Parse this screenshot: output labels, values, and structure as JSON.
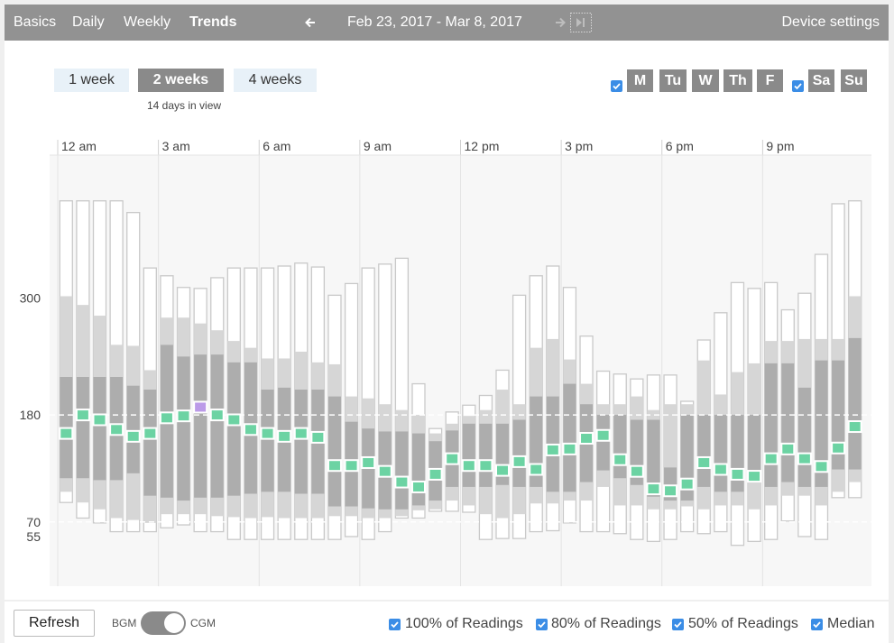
{
  "nav": {
    "tabs": [
      "Basics",
      "Daily",
      "Weekly",
      "Trends"
    ],
    "active_tab": 3,
    "date_range": "Feb 23, 2017 - Mar 8, 2017",
    "device_settings": "Device settings"
  },
  "controls": {
    "range_buttons": [
      "1 week",
      "2 weeks",
      "4 weeks"
    ],
    "active_range": 1,
    "days_in_view": "14 days in view"
  },
  "days": {
    "labels": [
      "M",
      "Tu",
      "W",
      "Th",
      "F",
      "Sa",
      "Su"
    ]
  },
  "footer": {
    "refresh": "Refresh",
    "toggle_left": "BGM",
    "toggle_right": "CGM"
  },
  "chart_data": {
    "type": "box",
    "x": [
      15,
      45,
      75,
      105,
      135,
      165,
      195,
      225,
      255,
      285,
      315,
      345,
      375,
      405,
      435,
      465,
      495,
      525,
      555,
      585,
      615,
      645,
      675,
      705,
      735,
      765,
      795,
      825,
      855,
      885,
      915,
      945,
      975,
      1005,
      1035,
      1065,
      1095,
      1125,
      1155,
      1185,
      1215,
      1245,
      1275,
      1305,
      1335,
      1365,
      1395,
      1425
    ],
    "xlim": [
      0,
      1440
    ],
    "xticks": [
      {
        "value": 0,
        "label": "12 am"
      },
      {
        "value": 180,
        "label": "3 am"
      },
      {
        "value": 360,
        "label": "6 am"
      },
      {
        "value": 540,
        "label": "9 am"
      },
      {
        "value": 720,
        "label": "12 pm"
      },
      {
        "value": 900,
        "label": "3 pm"
      },
      {
        "value": 1080,
        "label": "6 pm"
      },
      {
        "value": 1260,
        "label": "9 pm"
      }
    ],
    "ylim": [
      4,
      447
    ],
    "yticks": [
      55,
      70,
      180,
      300
    ],
    "target_range": [
      70,
      180
    ],
    "ranges": [
      {
        "name": "100% of Readings",
        "color": "#ffffff",
        "stroke": "#c9c9c9",
        "low": [
          90,
          74,
          69,
          60,
          60,
          60,
          64,
          67,
          60,
          60,
          52,
          52,
          52,
          52,
          52,
          52,
          52,
          55,
          52,
          60,
          74,
          74,
          81,
          81,
          80,
          52,
          53,
          53,
          60,
          61,
          69,
          60,
          60,
          58,
          52,
          50,
          52,
          60,
          58,
          60,
          46,
          50,
          52,
          71,
          55,
          52,
          95,
          95
        ],
        "high": [
          400,
          400,
          400,
          400,
          388,
          331,
          323,
          311,
          310,
          321,
          331,
          331,
          331,
          333,
          336,
          332,
          303,
          315,
          331,
          335,
          341,
          212,
          166,
          183,
          190,
          200,
          226,
          303,
          323,
          333,
          311,
          261,
          225,
          222,
          217,
          221,
          221,
          194,
          257,
          285,
          316,
          310,
          316,
          288,
          305,
          345,
          397,
          400
        ]
      },
      {
        "name": "80% of Readings",
        "color": "#d6d6d6",
        "low": [
          101,
          90,
          83,
          74,
          72,
          69,
          78,
          78,
          78,
          76,
          75,
          74,
          75,
          74,
          74,
          74,
          76,
          76,
          74,
          74,
          76,
          82,
          83,
          92,
          87,
          78,
          74,
          78,
          89,
          89,
          92,
          92,
          106,
          87,
          87,
          83,
          83,
          86,
          83,
          87,
          87,
          83,
          87,
          97,
          97,
          87,
          101,
          111
        ],
        "high": [
          302,
          293,
          282,
          252,
          251,
          226,
          280,
          280,
          274,
          267,
          256,
          249,
          238,
          238,
          245,
          234,
          232,
          199,
          197,
          191,
          185,
          180,
          161,
          171,
          179,
          185,
          206,
          191,
          249,
          258,
          237,
          212,
          191,
          191,
          199,
          185,
          191,
          191,
          236,
          201,
          224,
          233,
          256,
          256,
          258,
          258,
          258,
          302
        ]
      },
      {
        "name": "50% of Readings",
        "color": "#adadad",
        "low": [
          115,
          115,
          113,
          113,
          120,
          97,
          95,
          92,
          95,
          95,
          97,
          99,
          101,
          101,
          99,
          99,
          86,
          86,
          84,
          83,
          83,
          87,
          92,
          106,
          106,
          106,
          108,
          106,
          106,
          101,
          101,
          111,
          123,
          115,
          108,
          96,
          92,
          92,
          106,
          101,
          101,
          111,
          106,
          111,
          106,
          106,
          124,
          124
        ],
        "high": [
          219,
          219,
          219,
          219,
          210,
          206,
          252,
          240,
          242,
          242,
          234,
          234,
          206,
          208,
          206,
          206,
          199,
          173,
          166,
          163,
          163,
          161,
          153,
          164,
          171,
          171,
          171,
          175,
          199,
          199,
          212,
          191,
          180,
          180,
          175,
          175,
          126,
          180,
          180,
          180,
          180,
          180,
          233,
          233,
          208,
          236,
          236,
          259
        ]
      }
    ],
    "median": {
      "name": "Median",
      "color": "#6cd3a3",
      "highlight_index": 8,
      "highlight_color": "#bb9ae8",
      "values": [
        161,
        180,
        175,
        165,
        158,
        161,
        177,
        179,
        188,
        180,
        175,
        165,
        161,
        158,
        161,
        157,
        128,
        128,
        131,
        122,
        111,
        106,
        119,
        135,
        128,
        128,
        123,
        132,
        124,
        144,
        145,
        156,
        159,
        134,
        122,
        104,
        102,
        109,
        131,
        124,
        119,
        117,
        135,
        145,
        135,
        127,
        146,
        168
      ]
    }
  }
}
